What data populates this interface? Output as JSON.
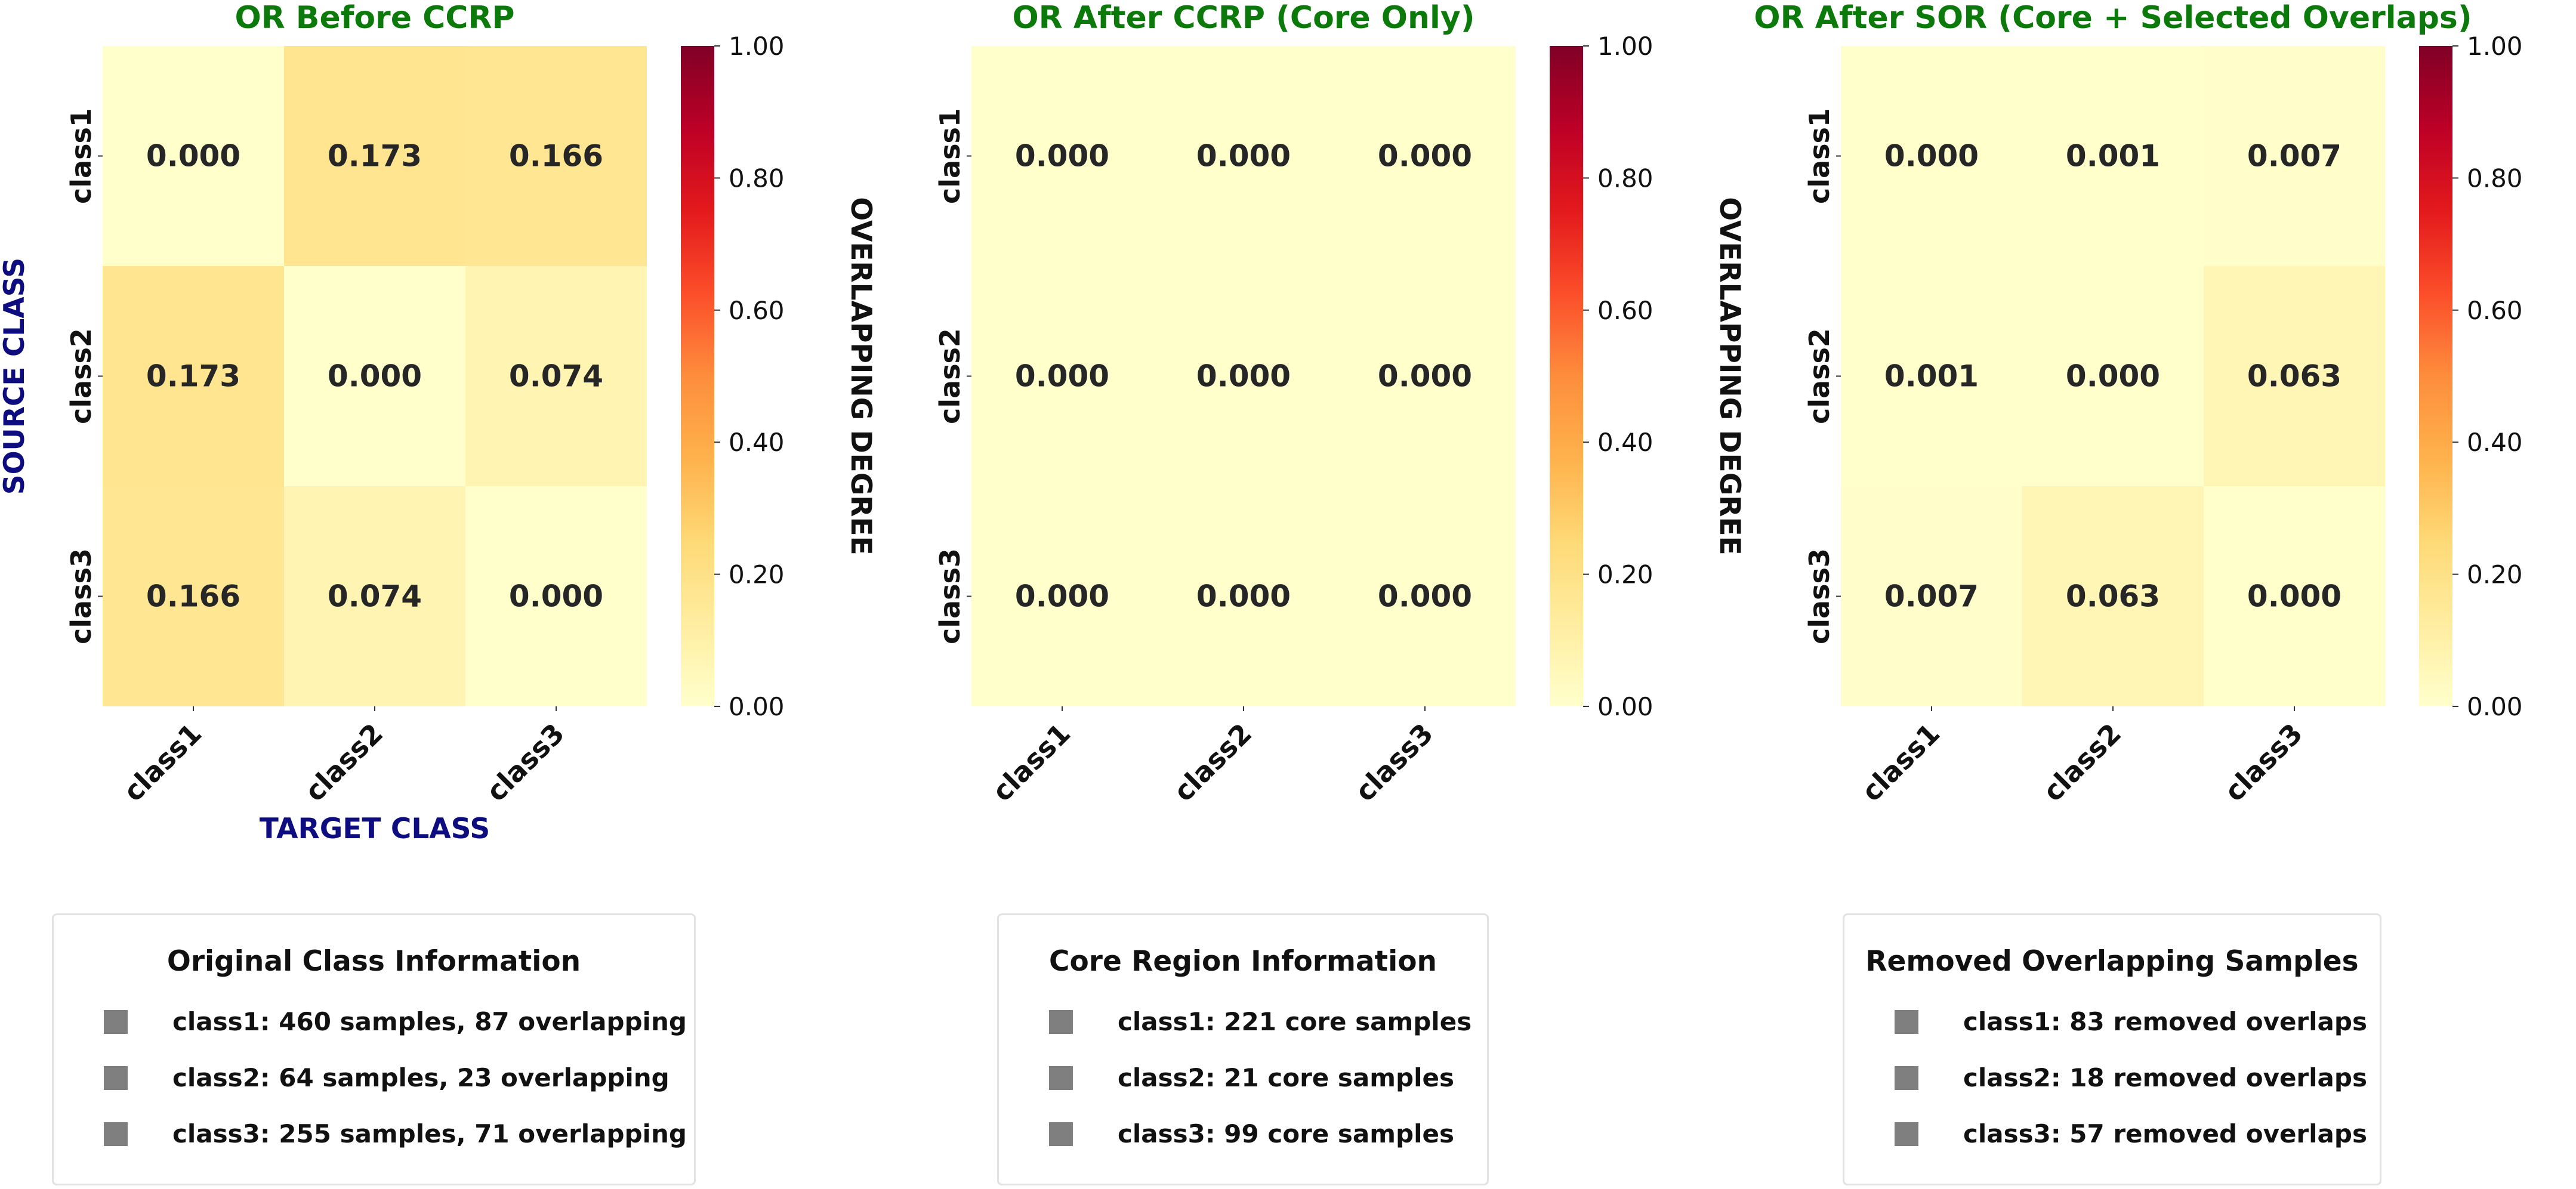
{
  "colors": {
    "title": "#0b7a0b",
    "axis_label": "#0d0d80",
    "cell_text": "#262626",
    "legend_swatch": "#7f7f7f",
    "colormap": "YlOrRd"
  },
  "chart_data": [
    {
      "type": "heatmap",
      "title": "OR Before CCRP",
      "xlabel": "TARGET CLASS",
      "ylabel": "SOURCE CLASS",
      "x_categories": [
        "class1",
        "class2",
        "class3"
      ],
      "y_categories": [
        "class1",
        "class2",
        "class3"
      ],
      "values": [
        [
          0.0,
          0.173,
          0.166
        ],
        [
          0.173,
          0.0,
          0.074
        ],
        [
          0.166,
          0.074,
          0.0
        ]
      ],
      "value_labels": [
        [
          "0.000",
          "0.173",
          "0.166"
        ],
        [
          "0.173",
          "0.000",
          "0.074"
        ],
        [
          "0.166",
          "0.074",
          "0.000"
        ]
      ],
      "colorbar": {
        "label": "OVERLAPPING DEGREE",
        "range": [
          0,
          1
        ],
        "ticks": [
          "0.00",
          "0.20",
          "0.40",
          "0.60",
          "0.80",
          "1.00"
        ]
      },
      "grid": false
    },
    {
      "type": "heatmap",
      "title": "OR After CCRP (Core Only)",
      "xlabel": "",
      "ylabel": "",
      "x_categories": [
        "class1",
        "class2",
        "class3"
      ],
      "y_categories": [
        "class1",
        "class2",
        "class3"
      ],
      "values": [
        [
          0.0,
          0.0,
          0.0
        ],
        [
          0.0,
          0.0,
          0.0
        ],
        [
          0.0,
          0.0,
          0.0
        ]
      ],
      "value_labels": [
        [
          "0.000",
          "0.000",
          "0.000"
        ],
        [
          "0.000",
          "0.000",
          "0.000"
        ],
        [
          "0.000",
          "0.000",
          "0.000"
        ]
      ],
      "colorbar": {
        "label": "OVERLAPPING DEGREE",
        "range": [
          0,
          1
        ],
        "ticks": [
          "0.00",
          "0.20",
          "0.40",
          "0.60",
          "0.80",
          "1.00"
        ]
      },
      "grid": false
    },
    {
      "type": "heatmap",
      "title": "OR After SOR (Core + Selected Overlaps)",
      "xlabel": "",
      "ylabel": "",
      "x_categories": [
        "class1",
        "class2",
        "class3"
      ],
      "y_categories": [
        "class1",
        "class2",
        "class3"
      ],
      "values": [
        [
          0.0,
          0.001,
          0.007
        ],
        [
          0.001,
          0.0,
          0.063
        ],
        [
          0.007,
          0.063,
          0.0
        ]
      ],
      "value_labels": [
        [
          "0.000",
          "0.001",
          "0.007"
        ],
        [
          "0.001",
          "0.000",
          "0.063"
        ],
        [
          "0.007",
          "0.063",
          "0.000"
        ]
      ],
      "colorbar": {
        "label": "OVERLAPPING DEGREE",
        "range": [
          0,
          1
        ],
        "ticks": [
          "0.00",
          "0.20",
          "0.40",
          "0.60",
          "0.80",
          "1.00"
        ]
      },
      "grid": false
    }
  ],
  "legends": [
    {
      "title": "Original Class Information",
      "items": [
        "class1: 460 samples, 87 overlapping",
        "class2: 64 samples, 23 overlapping",
        "class3: 255 samples, 71 overlapping"
      ]
    },
    {
      "title": "Core Region Information",
      "items": [
        "class1: 221 core samples",
        "class2: 21 core samples",
        "class3: 99 core samples"
      ]
    },
    {
      "title": "Removed Overlapping Samples",
      "items": [
        "class1: 83 removed overlaps",
        "class2: 18 removed overlaps",
        "class3: 57 removed overlaps"
      ]
    }
  ]
}
